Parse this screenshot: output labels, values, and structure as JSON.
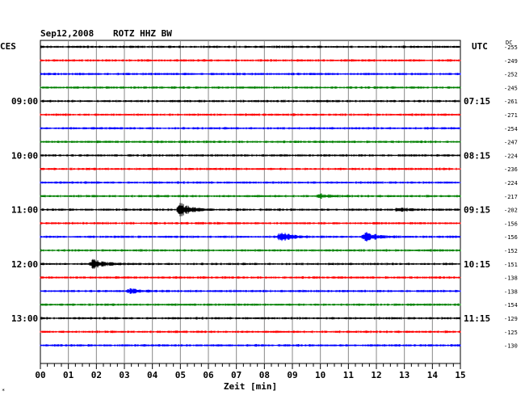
{
  "header": {
    "date": "Sep12,2008",
    "station": "ROTZ HHZ BW",
    "left_zone": "CES",
    "right_zone": "UTC",
    "dc_label": "DC"
  },
  "chart_data": {
    "type": "line",
    "title": "Sep12,2008   ROTZ HHZ BW",
    "xlabel": "Zeit [min]",
    "xlim": [
      0,
      15
    ],
    "x_tick_labels": [
      "00",
      "01",
      "02",
      "03",
      "04",
      "05",
      "06",
      "07",
      "08",
      "09",
      "10",
      "11",
      "12",
      "13",
      "14",
      "15"
    ],
    "minor_ticks_per_minute": 4,
    "grid": true,
    "colors": [
      "#000000",
      "#ff0000",
      "#0000ff",
      "#008000"
    ],
    "color_cycle": [
      "black",
      "red",
      "blue",
      "green"
    ],
    "left_time_labels": [
      {
        "trace": 4,
        "label": "09:00"
      },
      {
        "trace": 8,
        "label": "10:00"
      },
      {
        "trace": 12,
        "label": "11:00"
      },
      {
        "trace": 16,
        "label": "12:00"
      },
      {
        "trace": 20,
        "label": "13:00"
      }
    ],
    "right_time_labels": [
      {
        "trace": 4,
        "label": "07:15"
      },
      {
        "trace": 8,
        "label": "08:15"
      },
      {
        "trace": 12,
        "label": "09:15"
      },
      {
        "trace": 16,
        "label": "10:15"
      },
      {
        "trace": 20,
        "label": "11:15"
      }
    ],
    "dc_offsets": [
      "-255",
      "-249",
      "-252",
      "-245",
      "-261",
      "-271",
      "-254",
      "-247",
      "-224",
      "-236",
      "-224",
      "-217",
      "-202",
      "-156",
      "-156",
      "-152",
      "-151",
      "-138",
      "-138",
      "-154",
      "-129",
      "-125",
      "-130"
    ],
    "events": [
      {
        "trace": 12,
        "minute": 5.0,
        "amplitude": 9
      },
      {
        "trace": 14,
        "minute": 8.6,
        "amplitude": 6
      },
      {
        "trace": 14,
        "minute": 11.6,
        "amplitude": 6
      },
      {
        "trace": 16,
        "minute": 1.9,
        "amplitude": 6
      },
      {
        "trace": 18,
        "minute": 3.2,
        "amplitude": 3
      },
      {
        "trace": 12,
        "minute": 12.8,
        "amplitude": 2
      },
      {
        "trace": 11,
        "minute": 10.0,
        "amplitude": 2
      }
    ]
  },
  "footnote_mark": "*"
}
